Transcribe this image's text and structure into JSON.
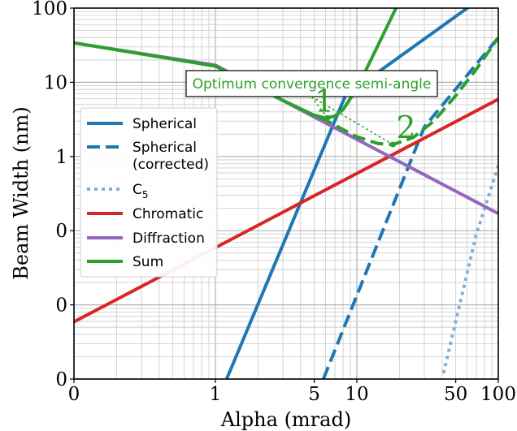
{
  "chart_data": {
    "type": "line",
    "xlabel": "Alpha (mrad)",
    "ylabel": "Beam Width (nm)",
    "xscale": "log",
    "yscale": "log",
    "xlim": [
      0.1,
      100
    ],
    "ylim": [
      0.001,
      100
    ],
    "grid": true,
    "x_tick_labels": [
      {
        "value": 0.1,
        "label": "0"
      },
      {
        "value": 1,
        "label": "1"
      },
      {
        "value": 5,
        "label": "5"
      },
      {
        "value": 10,
        "label": "10"
      },
      {
        "value": 50,
        "label": "50"
      },
      {
        "value": 100,
        "label": "100"
      }
    ],
    "y_tick_labels": [
      {
        "value": 0.001,
        "label": "0"
      },
      {
        "value": 0.01,
        "label": "0"
      },
      {
        "value": 0.1,
        "label": "0"
      },
      {
        "value": 1,
        "label": "1"
      },
      {
        "value": 10,
        "label": "10"
      },
      {
        "value": 100,
        "label": "100"
      }
    ],
    "legend_position": "center-left",
    "series": [
      {
        "name": "Spherical",
        "color": "#1f77b4",
        "style": "solid",
        "x": [
          1.2,
          8.3,
          100
        ],
        "y": [
          0.001,
          6.6,
          200
        ]
      },
      {
        "name": "Spherical (corrected)",
        "color": "#1f77b4",
        "style": "dashed",
        "x": [
          5.8,
          30,
          100
        ],
        "y": [
          0.001,
          2.5,
          40
        ]
      },
      {
        "name": "C5",
        "color": "#7fb0dc",
        "style": "dotted",
        "x": [
          41,
          70,
          100
        ],
        "y": [
          0.0012,
          0.09,
          0.75
        ]
      },
      {
        "name": "Chromatic",
        "color": "#d62728",
        "style": "solid",
        "x": [
          0.1,
          1,
          10,
          100
        ],
        "y": [
          0.0059,
          0.059,
          0.59,
          5.9
        ]
      },
      {
        "name": "Diffraction",
        "color": "#9467bd",
        "style": "solid",
        "x": [
          0.1,
          1,
          10,
          100
        ],
        "y": [
          34,
          17,
          1.7,
          0.17
        ]
      },
      {
        "name": "Sum",
        "color": "#2ca02c",
        "style": "solid",
        "x": [
          0.1,
          1,
          3,
          5,
          6,
          7,
          8,
          10,
          15,
          20
        ],
        "y": [
          34,
          16.5,
          5.7,
          3.6,
          3.3,
          3.5,
          4.3,
          8.2,
          40,
          125
        ]
      },
      {
        "name": "",
        "color": "#2ca02c",
        "style": "dashed",
        "x": [
          5.5,
          8,
          10,
          14,
          18,
          25,
          35,
          50,
          70,
          100
        ],
        "y": [
          3.4,
          2.3,
          1.85,
          1.5,
          1.45,
          1.8,
          3.0,
          6.6,
          15,
          40
        ]
      }
    ],
    "annotation": {
      "text": "Optimum convergence semi-angle",
      "markers": [
        {
          "label": "1",
          "x": 6.2,
          "y": 3.3
        },
        {
          "label": "2",
          "x": 18,
          "y": 1.45
        }
      ]
    }
  },
  "legend": {
    "items": [
      {
        "label": "Spherical",
        "color": "#1f77b4",
        "style": "solid"
      },
      {
        "label": "Spherical",
        "label2": "(corrected)",
        "color": "#1f77b4",
        "style": "dashed"
      },
      {
        "label": "C",
        "sub": "5",
        "color": "#7fb0dc",
        "style": "dotted"
      },
      {
        "label": "Chromatic",
        "color": "#d62728",
        "style": "solid"
      },
      {
        "label": "Diffraction",
        "color": "#9467bd",
        "style": "solid"
      },
      {
        "label": "Sum",
        "color": "#2ca02c",
        "style": "solid"
      }
    ]
  }
}
